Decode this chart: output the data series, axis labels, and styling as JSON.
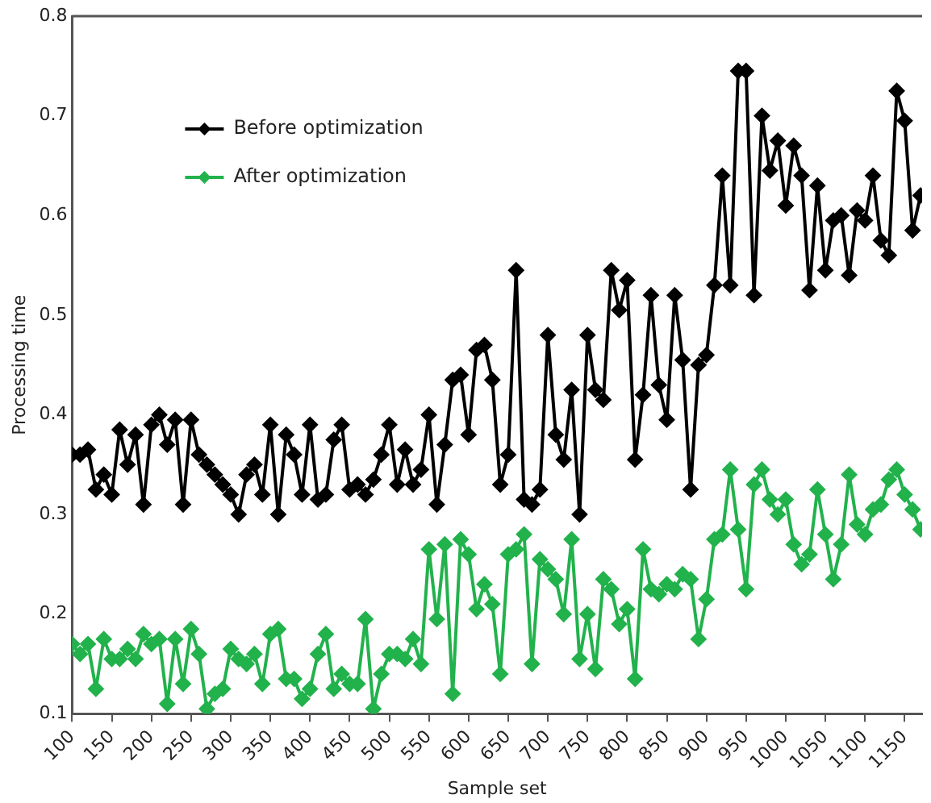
{
  "chart_data": {
    "type": "line",
    "xlabel": "Sample set",
    "ylabel": "Processing time",
    "x": [
      100,
      110,
      120,
      130,
      140,
      150,
      160,
      170,
      180,
      190,
      200,
      210,
      220,
      230,
      240,
      250,
      260,
      270,
      280,
      290,
      300,
      310,
      320,
      330,
      340,
      350,
      360,
      370,
      380,
      390,
      400,
      410,
      420,
      430,
      440,
      450,
      460,
      470,
      480,
      490,
      500,
      510,
      520,
      530,
      540,
      550,
      560,
      570,
      580,
      590,
      600,
      610,
      620,
      630,
      640,
      650,
      660,
      670,
      680,
      690,
      700,
      710,
      720,
      730,
      740,
      750,
      760,
      770,
      780,
      790,
      800,
      810,
      820,
      830,
      840,
      850,
      860,
      870,
      880,
      890,
      900,
      910,
      920,
      930,
      940,
      950,
      960,
      970,
      980,
      990,
      1000,
      1010,
      1020,
      1030,
      1040,
      1050,
      1060,
      1070,
      1080,
      1090,
      1100,
      1110,
      1120,
      1130,
      1140,
      1150,
      1160,
      1170
    ],
    "series": [
      {
        "name": "Before optimization",
        "color": "#000000",
        "values": [
          0.36,
          0.36,
          0.365,
          0.325,
          0.34,
          0.32,
          0.385,
          0.35,
          0.38,
          0.31,
          0.39,
          0.4,
          0.37,
          0.395,
          0.31,
          0.395,
          0.36,
          0.35,
          0.34,
          0.33,
          0.32,
          0.3,
          0.34,
          0.35,
          0.32,
          0.39,
          0.3,
          0.38,
          0.36,
          0.32,
          0.39,
          0.315,
          0.32,
          0.375,
          0.39,
          0.325,
          0.33,
          0.32,
          0.335,
          0.36,
          0.39,
          0.33,
          0.365,
          0.33,
          0.345,
          0.4,
          0.31,
          0.37,
          0.435,
          0.44,
          0.38,
          0.465,
          0.47,
          0.435,
          0.33,
          0.36,
          0.545,
          0.315,
          0.31,
          0.325,
          0.48,
          0.38,
          0.355,
          0.425,
          0.3,
          0.48,
          0.425,
          0.415,
          0.545,
          0.505,
          0.535,
          0.355,
          0.42,
          0.52,
          0.43,
          0.395,
          0.52,
          0.455,
          0.325,
          0.45,
          0.46,
          0.53,
          0.64,
          0.53,
          0.745,
          0.745,
          0.52,
          0.7,
          0.645,
          0.675,
          0.61,
          0.67,
          0.64,
          0.525,
          0.63,
          0.545,
          0.595,
          0.6,
          0.54,
          0.605,
          0.595,
          0.64,
          0.575,
          0.56,
          0.725,
          0.695,
          0.585,
          0.62
        ]
      },
      {
        "name": "After optimization",
        "color": "#22b24c",
        "values": [
          0.17,
          0.16,
          0.17,
          0.125,
          0.175,
          0.155,
          0.155,
          0.165,
          0.155,
          0.18,
          0.17,
          0.175,
          0.11,
          0.175,
          0.13,
          0.185,
          0.16,
          0.105,
          0.12,
          0.125,
          0.165,
          0.155,
          0.15,
          0.16,
          0.13,
          0.18,
          0.185,
          0.135,
          0.135,
          0.115,
          0.125,
          0.16,
          0.18,
          0.125,
          0.14,
          0.13,
          0.13,
          0.195,
          0.105,
          0.14,
          0.16,
          0.16,
          0.155,
          0.175,
          0.15,
          0.265,
          0.195,
          0.27,
          0.12,
          0.275,
          0.26,
          0.205,
          0.23,
          0.21,
          0.14,
          0.26,
          0.265,
          0.28,
          0.15,
          0.255,
          0.245,
          0.235,
          0.2,
          0.275,
          0.155,
          0.2,
          0.145,
          0.235,
          0.225,
          0.19,
          0.205,
          0.135,
          0.265,
          0.225,
          0.22,
          0.23,
          0.225,
          0.24,
          0.235,
          0.175,
          0.215,
          0.275,
          0.28,
          0.345,
          0.285,
          0.225,
          0.33,
          0.345,
          0.315,
          0.3,
          0.315,
          0.27,
          0.25,
          0.26,
          0.325,
          0.28,
          0.235,
          0.27,
          0.34,
          0.29,
          0.28,
          0.305,
          0.31,
          0.335,
          0.345,
          0.32,
          0.305,
          0.285
        ]
      }
    ],
    "xlim": [
      100,
      1172
    ],
    "xticks": [
      100,
      150,
      200,
      250,
      300,
      350,
      400,
      450,
      500,
      550,
      600,
      650,
      700,
      750,
      800,
      850,
      900,
      950,
      1000,
      1050,
      1100,
      1150
    ],
    "ylim": [
      0.1,
      0.8
    ],
    "yticks": [
      0.1,
      0.2,
      0.3,
      0.4,
      0.5,
      0.6,
      0.7,
      0.8
    ],
    "grid": false,
    "legend": "top left",
    "marker": "diamond",
    "line_style": "solid"
  }
}
